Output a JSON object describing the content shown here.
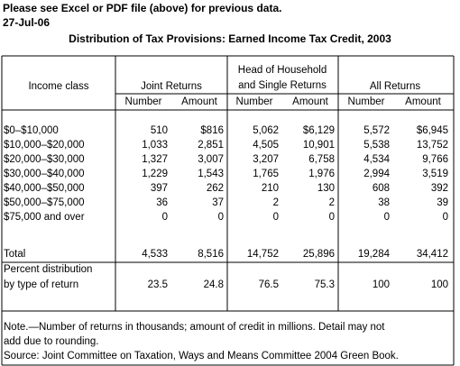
{
  "header": {
    "notice": "Please see Excel or PDF file (above) for previous data.",
    "date": "27-Jul-06",
    "title": "Distribution of Tax Provisions: Earned Income Tax Credit, 2003"
  },
  "table": {
    "income_class": "Income class",
    "groups": [
      [
        "Joint Returns"
      ],
      [
        "Head of Household",
        "and Single Returns"
      ],
      [
        "All Returns"
      ]
    ],
    "subcolumns": [
      "Number",
      "Amount"
    ],
    "rows": [
      [
        "$0–$10,000",
        "510",
        "$816",
        "5,062",
        "$6,129",
        "5,572",
        "$6,945"
      ],
      [
        "$10,000–$20,000",
        "1,033",
        "2,851",
        "4,505",
        "10,901",
        "5,538",
        "13,752"
      ],
      [
        "$20,000–$30,000",
        "1,327",
        "3,007",
        "3,207",
        "6,758",
        "4,534",
        "9,766"
      ],
      [
        "$30,000–$40,000",
        "1,229",
        "1,543",
        "1,765",
        "1,976",
        "2,994",
        "3,519"
      ],
      [
        "$40,000–$50,000",
        "397",
        "262",
        "210",
        "130",
        "608",
        "392"
      ],
      [
        "$50,000–$75,000",
        "36",
        "37",
        "2",
        "2",
        "38",
        "39"
      ],
      [
        "$75,000 and over",
        "0",
        "0",
        "0",
        "0",
        "0",
        "0"
      ]
    ],
    "total": [
      "Total",
      "4,533",
      "8,516",
      "14,752",
      "25,896",
      "19,284",
      "34,412"
    ],
    "percent": {
      "label": [
        "Percent distribution",
        "by type of return"
      ],
      "values": [
        "23.5",
        "24.8",
        "76.5",
        "75.3",
        "100",
        "100"
      ]
    }
  },
  "notes": [
    "Note.—Number of returns in thousands; amount of credit in millions.  Detail may not",
    "add due to rounding.",
    "Source: Joint Committee on Taxation, Ways and Means Committee 2004 Green Book."
  ]
}
